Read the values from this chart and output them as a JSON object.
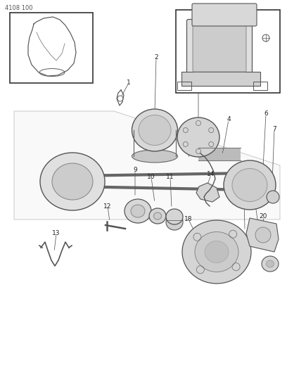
{
  "title": "4108 100",
  "bg_color": "#ffffff",
  "line_color": "#555555",
  "gray_light": "#e0e0e0",
  "gray_mid": "#cccccc",
  "gray_dark": "#aaaaaa",
  "label_fontsize": 6.5,
  "title_fontsize": 6.0
}
